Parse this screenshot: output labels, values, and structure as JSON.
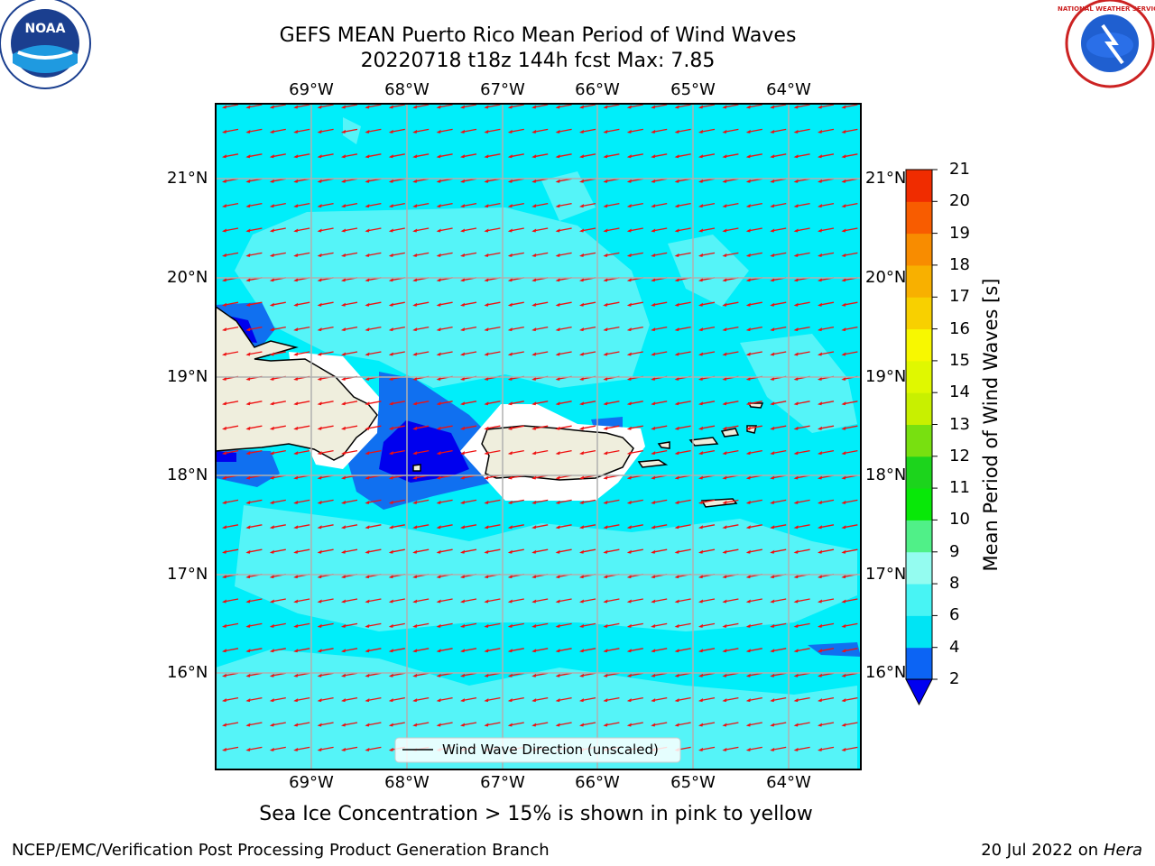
{
  "header": {
    "title_line1": "GEFS MEAN Puerto Rico Mean Period of Wind Waves",
    "title_line2": "20220718 t18z 144h fcst   Max: 7.85"
  },
  "map": {
    "lon_labels": [
      "69°W",
      "68°W",
      "67°W",
      "66°W",
      "65°W",
      "64°W"
    ],
    "lat_labels": [
      "21°N",
      "20°N",
      "19°N",
      "18°N",
      "17°N",
      "16°N"
    ],
    "legend_label": "Wind Wave Direction (unscaled)"
  },
  "colorbar": {
    "label": "Mean Period of Wind Waves [s]",
    "ticks": [
      "2",
      "4",
      "6",
      "8",
      "9",
      "10",
      "11",
      "12",
      "13",
      "14",
      "15",
      "16",
      "17",
      "18",
      "19",
      "20",
      "21"
    ],
    "colors": [
      "#0c64f4",
      "#00e4f4",
      "#48f4f4",
      "#94fcf0",
      "#50f088",
      "#08e808",
      "#1cd41c",
      "#78e010",
      "#c8f000",
      "#e0f800",
      "#f8f800",
      "#f8d000",
      "#f8b000",
      "#f88c00",
      "#f85c00",
      "#f02c00",
      "#f00000"
    ],
    "under_color": "#0000f0"
  },
  "note": "Sea Ice Concentration > 15% is shown in pink to yellow",
  "footer": {
    "left": "NCEP/EMC/Verification Post Processing Product Generation Branch",
    "right_prefix": "20 Jul 2022 on ",
    "right_host": "Hera"
  },
  "logos": {
    "noaa": "NOAA",
    "nws": "NATIONAL WEATHER SERVICE"
  },
  "colors": {
    "ocean_base": "#00eefa",
    "ocean_light": "#55f4f8",
    "land": "#efeedd",
    "arrow": "#ee1111",
    "medium_blue": "#1070f0",
    "dark_blue": "#0000ee"
  }
}
